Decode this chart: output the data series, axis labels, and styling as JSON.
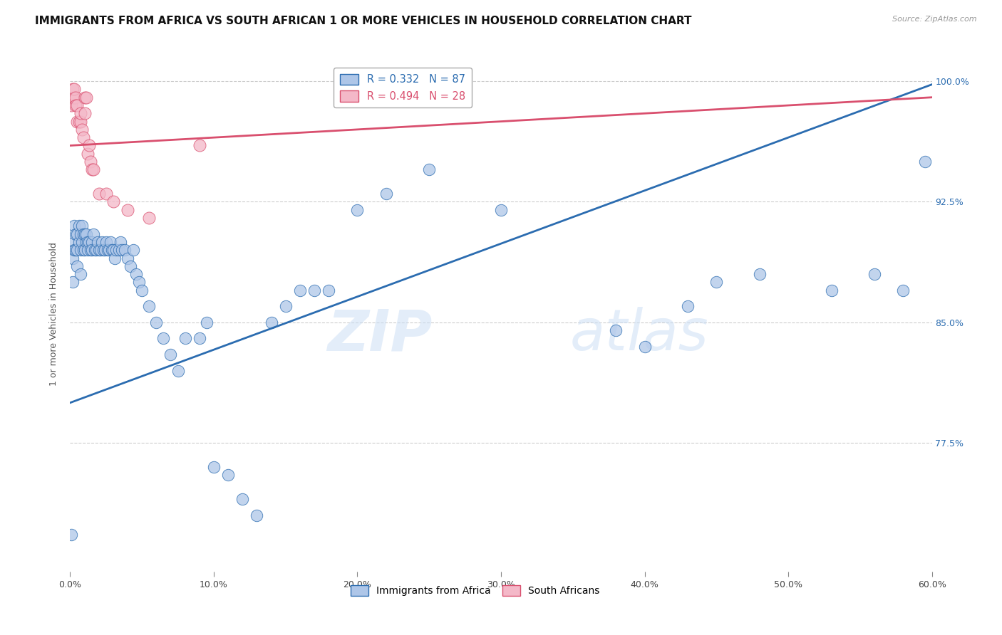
{
  "title": "IMMIGRANTS FROM AFRICA VS SOUTH AFRICAN 1 OR MORE VEHICLES IN HOUSEHOLD CORRELATION CHART",
  "source_text": "Source: ZipAtlas.com",
  "ylabel": "1 or more Vehicles in Household",
  "xlim": [
    0.0,
    0.6
  ],
  "ylim": [
    0.695,
    1.015
  ],
  "xtick_labels": [
    "0.0%",
    "",
    "",
    "",
    "",
    "",
    "10.0%",
    "",
    "",
    "",
    "",
    "",
    "20.0%",
    "",
    "",
    "",
    "",
    "",
    "30.0%",
    "",
    "",
    "",
    "",
    "",
    "40.0%",
    "",
    "",
    "",
    "",
    "",
    "50.0%",
    "",
    "",
    "",
    "",
    "",
    "60.0%"
  ],
  "xtick_major_vals": [
    0.0,
    0.1,
    0.2,
    0.3,
    0.4,
    0.5,
    0.6
  ],
  "xtick_major_labels": [
    "0.0%",
    "10.0%",
    "20.0%",
    "30.0%",
    "40.0%",
    "50.0%",
    "60.0%"
  ],
  "ytick_labels": [
    "77.5%",
    "85.0%",
    "92.5%",
    "100.0%"
  ],
  "ytick_vals": [
    0.775,
    0.85,
    0.925,
    1.0
  ],
  "blue_color": "#aec6e8",
  "pink_color": "#f4b8c8",
  "blue_line_color": "#2b6cb0",
  "pink_line_color": "#d94f6e",
  "legend_blue_label": "R = 0.332   N = 87",
  "legend_pink_label": "R = 0.494   N = 28",
  "legend_immigrants_label": "Immigrants from Africa",
  "legend_sa_label": "South Africans",
  "blue_scatter_x": [
    0.001,
    0.002,
    0.002,
    0.003,
    0.003,
    0.003,
    0.004,
    0.004,
    0.005,
    0.005,
    0.005,
    0.006,
    0.006,
    0.007,
    0.007,
    0.007,
    0.008,
    0.008,
    0.009,
    0.009,
    0.01,
    0.01,
    0.011,
    0.011,
    0.012,
    0.012,
    0.013,
    0.014,
    0.015,
    0.015,
    0.016,
    0.017,
    0.018,
    0.019,
    0.02,
    0.021,
    0.022,
    0.023,
    0.024,
    0.025,
    0.026,
    0.027,
    0.028,
    0.029,
    0.03,
    0.031,
    0.032,
    0.034,
    0.035,
    0.036,
    0.038,
    0.04,
    0.042,
    0.044,
    0.046,
    0.048,
    0.05,
    0.055,
    0.06,
    0.065,
    0.07,
    0.075,
    0.08,
    0.09,
    0.095,
    0.1,
    0.11,
    0.12,
    0.13,
    0.14,
    0.15,
    0.16,
    0.17,
    0.18,
    0.2,
    0.22,
    0.25,
    0.3,
    0.38,
    0.4,
    0.43,
    0.45,
    0.48,
    0.53,
    0.56,
    0.58,
    0.595
  ],
  "blue_scatter_y": [
    0.718,
    0.875,
    0.89,
    0.9,
    0.895,
    0.91,
    0.895,
    0.905,
    0.885,
    0.905,
    0.895,
    0.9,
    0.91,
    0.88,
    0.905,
    0.895,
    0.91,
    0.9,
    0.905,
    0.895,
    0.905,
    0.895,
    0.9,
    0.905,
    0.9,
    0.895,
    0.9,
    0.895,
    0.9,
    0.895,
    0.905,
    0.895,
    0.895,
    0.9,
    0.895,
    0.895,
    0.9,
    0.895,
    0.895,
    0.9,
    0.895,
    0.895,
    0.9,
    0.895,
    0.895,
    0.89,
    0.895,
    0.895,
    0.9,
    0.895,
    0.895,
    0.89,
    0.885,
    0.895,
    0.88,
    0.875,
    0.87,
    0.86,
    0.85,
    0.84,
    0.83,
    0.82,
    0.84,
    0.84,
    0.85,
    0.76,
    0.755,
    0.74,
    0.73,
    0.85,
    0.86,
    0.87,
    0.87,
    0.87,
    0.92,
    0.93,
    0.945,
    0.92,
    0.845,
    0.835,
    0.86,
    0.875,
    0.88,
    0.87,
    0.88,
    0.87,
    0.95
  ],
  "pink_scatter_x": [
    0.001,
    0.002,
    0.002,
    0.003,
    0.003,
    0.004,
    0.004,
    0.005,
    0.005,
    0.006,
    0.007,
    0.007,
    0.008,
    0.009,
    0.01,
    0.01,
    0.011,
    0.012,
    0.013,
    0.014,
    0.015,
    0.016,
    0.02,
    0.025,
    0.03,
    0.04,
    0.055,
    0.09
  ],
  "pink_scatter_y": [
    0.985,
    0.99,
    0.995,
    0.99,
    0.995,
    0.99,
    0.985,
    0.985,
    0.975,
    0.975,
    0.975,
    0.98,
    0.97,
    0.965,
    0.98,
    0.99,
    0.99,
    0.955,
    0.96,
    0.95,
    0.945,
    0.945,
    0.93,
    0.93,
    0.925,
    0.92,
    0.915,
    0.96
  ],
  "blue_line_x": [
    0.0,
    0.6
  ],
  "blue_line_y": [
    0.8,
    0.998
  ],
  "pink_line_x": [
    0.0,
    0.6
  ],
  "pink_line_y": [
    0.96,
    0.99
  ],
  "watermark_zip": "ZIP",
  "watermark_atlas": "atlas",
  "title_fontsize": 11,
  "axis_fontsize": 9,
  "tick_fontsize": 9,
  "right_tick_color": "#2b6cb0"
}
